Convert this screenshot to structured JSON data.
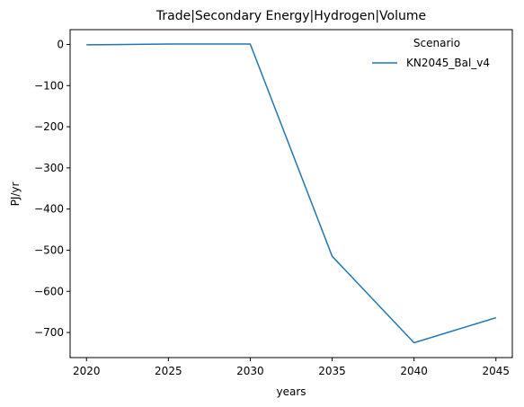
{
  "chart_data": {
    "type": "line",
    "title": "Trade|Secondary Energy|Hydrogen|Volume",
    "xlabel": "years",
    "ylabel": "PJ/yr",
    "x": [
      2020,
      2025,
      2030,
      2035,
      2040,
      2045
    ],
    "xticks": [
      2020,
      2025,
      2030,
      2035,
      2040,
      2045
    ],
    "yticks": [
      0,
      -100,
      -200,
      -300,
      -400,
      -500,
      -600,
      -700
    ],
    "ytick_labels": [
      "0",
      "−100",
      "−200",
      "−300",
      "−400",
      "−500",
      "−600",
      "−700"
    ],
    "xlim": [
      2019.0,
      2046.0
    ],
    "ylim": [
      -761,
      36
    ],
    "grid": false,
    "legend": {
      "title": "Scenario",
      "placement": "top-right"
    },
    "series": [
      {
        "name": "KN2045_Bal_v4",
        "color": "#1f77b4",
        "values": [
          -1,
          1,
          1,
          -515,
          -725,
          -664
        ]
      }
    ]
  }
}
